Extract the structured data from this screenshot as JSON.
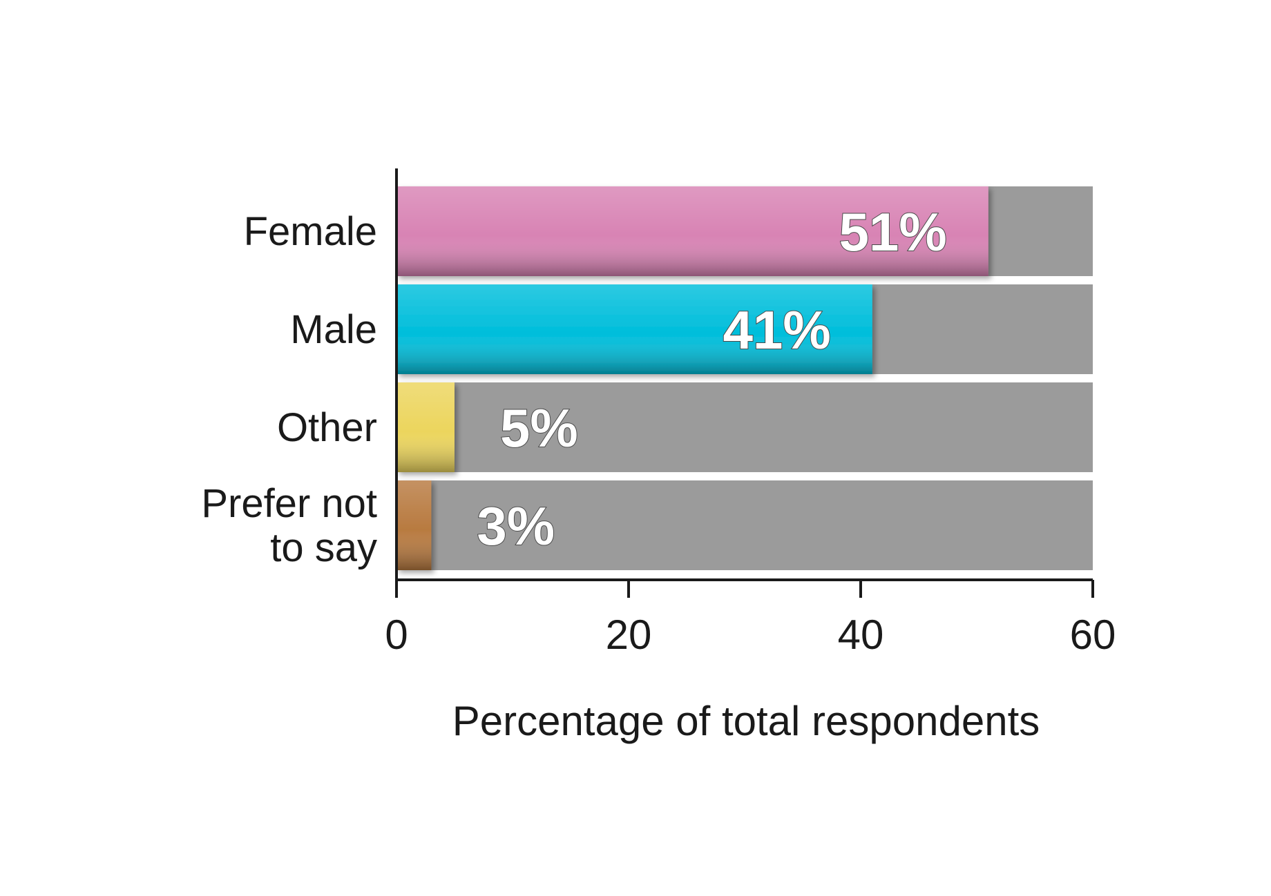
{
  "chart_data": {
    "type": "bar",
    "orientation": "horizontal",
    "categories": [
      "Female",
      "Male",
      "Other",
      "Prefer not to say"
    ],
    "category_lines": [
      [
        "Female"
      ],
      [
        "Male"
      ],
      [
        "Other"
      ],
      [
        "Prefer not",
        "to say"
      ]
    ],
    "values": [
      51,
      41,
      5,
      3
    ],
    "value_labels": [
      "51%",
      "41%",
      "5%",
      "3%"
    ],
    "colors": [
      "#d883b4",
      "#00bedb",
      "#ecd55d",
      "#b87a40"
    ],
    "background_bar_color": "#9b9b9b",
    "xlabel": "Percentage of total respondents",
    "ylabel": "",
    "xlim": [
      0,
      60
    ],
    "xticks": [
      0,
      20,
      40,
      60
    ],
    "xtick_labels": [
      "0",
      "20",
      "40",
      "60"
    ],
    "grid": false,
    "legend": "none"
  }
}
